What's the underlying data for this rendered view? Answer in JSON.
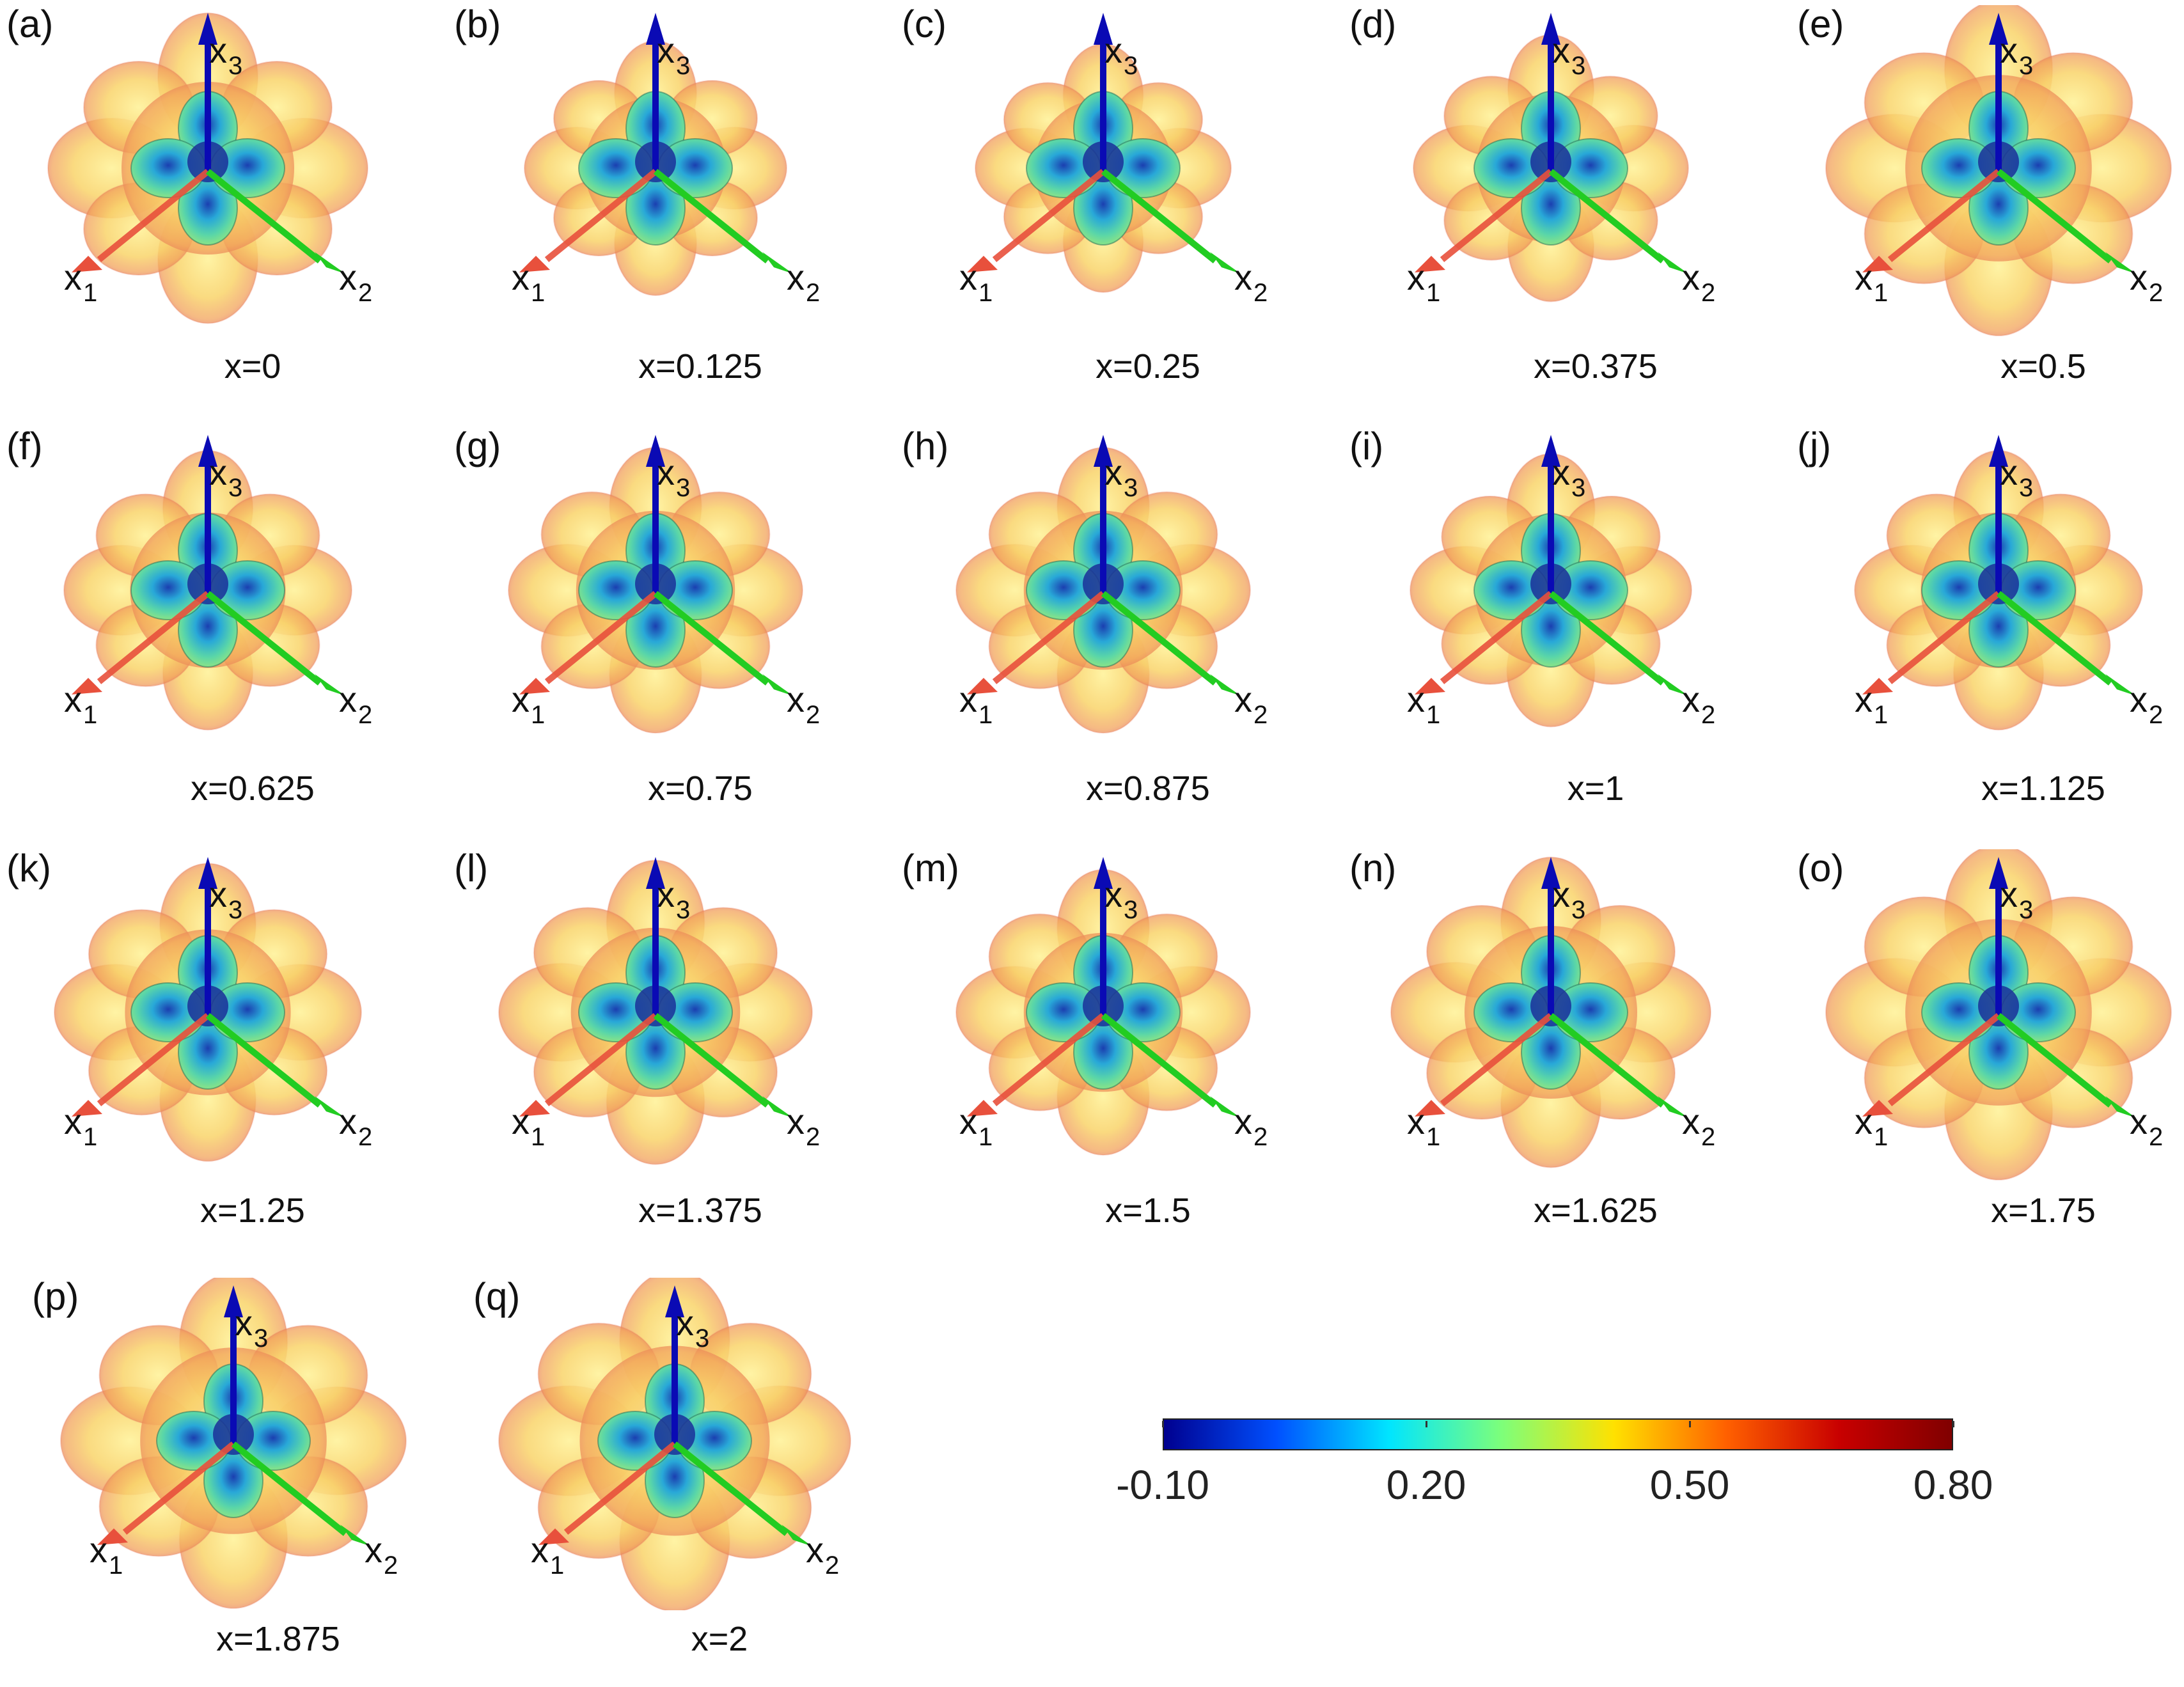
{
  "axes": {
    "x1": "x",
    "x1_sub": "1",
    "x2": "x",
    "x2_sub": "2",
    "x3": "x",
    "x3_sub": "3"
  },
  "panels": [
    {
      "letter": "(a)",
      "caption": "x=0"
    },
    {
      "letter": "(b)",
      "caption": "x=0.125"
    },
    {
      "letter": "(c)",
      "caption": "x=0.25"
    },
    {
      "letter": "(d)",
      "caption": "x=0.375"
    },
    {
      "letter": "(e)",
      "caption": "x=0.5"
    },
    {
      "letter": "(f)",
      "caption": "x=0.625"
    },
    {
      "letter": "(g)",
      "caption": "x=0.75"
    },
    {
      "letter": "(h)",
      "caption": "x=0.875"
    },
    {
      "letter": "(i)",
      "caption": "x=1"
    },
    {
      "letter": "(j)",
      "caption": "x=1.125"
    },
    {
      "letter": "(k)",
      "caption": "x=1.25"
    },
    {
      "letter": "(l)",
      "caption": "x=1.375"
    },
    {
      "letter": "(m)",
      "caption": "x=1.5"
    },
    {
      "letter": "(n)",
      "caption": "x=1.625"
    },
    {
      "letter": "(o)",
      "caption": "x=1.75"
    },
    {
      "letter": "(p)",
      "caption": "x=1.875"
    },
    {
      "letter": "(q)",
      "caption": "x=2"
    }
  ],
  "colorbar": {
    "min": -0.1,
    "max": 0.8,
    "ticks": [
      "-0.10",
      "0.20",
      "0.50",
      "0.80"
    ],
    "colors": [
      "#00008f",
      "#0050ff",
      "#00e5ff",
      "#7dff7a",
      "#ffe100",
      "#ff6000",
      "#c80000",
      "#800000"
    ]
  },
  "colors": {
    "x1_axis": "#e8503c",
    "x2_axis": "#22cc22",
    "x3_axis": "#0a0ab4",
    "outer_surface": "#f5c860",
    "outer_edge": "#e8765a",
    "inner_surface": "#3ac8b8"
  }
}
